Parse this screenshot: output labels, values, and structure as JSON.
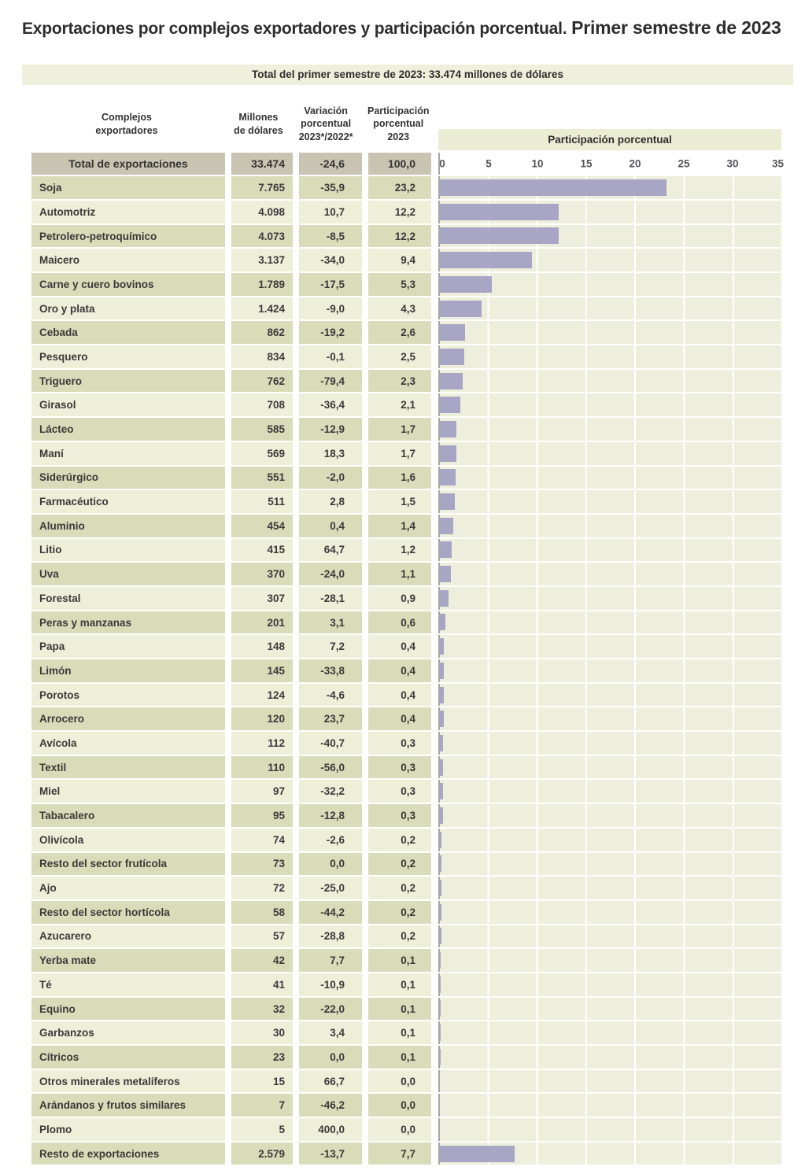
{
  "title": {
    "part1": "Exportaciones por complejos exportadores y participación porcentual.",
    "part2": "Primer semestre de 2023"
  },
  "subtitle": "Total del primer semestre de 2023: 33.474 millones de dólares",
  "table": {
    "headers": {
      "col1": "Complejos\nexportadores",
      "col2": "Millones\nde dólares",
      "col3": "Variación\nporcentual\n2023*/2022*",
      "col4": "Participación\nporcentual\n2023"
    },
    "total_row": {
      "label": "Total de exportaciones",
      "millones": "33.474",
      "variacion": "-24,6",
      "participacion": "100,0"
    },
    "rows": [
      {
        "label": "Soja",
        "millones": "7.765",
        "variacion": "-35,9",
        "participacion": "23,2"
      },
      {
        "label": "Automotriz",
        "millones": "4.098",
        "variacion": "10,7",
        "participacion": "12,2"
      },
      {
        "label": "Petrolero-petroquímico",
        "millones": "4.073",
        "variacion": "-8,5",
        "participacion": "12,2"
      },
      {
        "label": "Maicero",
        "millones": "3.137",
        "variacion": "-34,0",
        "participacion": "9,4"
      },
      {
        "label": "Carne y cuero bovinos",
        "millones": "1.789",
        "variacion": "-17,5",
        "participacion": "5,3"
      },
      {
        "label": "Oro y plata",
        "millones": "1.424",
        "variacion": "-9,0",
        "participacion": "4,3"
      },
      {
        "label": "Cebada",
        "millones": "862",
        "variacion": "-19,2",
        "participacion": "2,6"
      },
      {
        "label": "Pesquero",
        "millones": "834",
        "variacion": "-0,1",
        "participacion": "2,5"
      },
      {
        "label": "Triguero",
        "millones": "762",
        "variacion": "-79,4",
        "participacion": "2,3"
      },
      {
        "label": "Girasol",
        "millones": "708",
        "variacion": "-36,4",
        "participacion": "2,1"
      },
      {
        "label": "Lácteo",
        "millones": "585",
        "variacion": "-12,9",
        "participacion": "1,7"
      },
      {
        "label": "Maní",
        "millones": "569",
        "variacion": "18,3",
        "participacion": "1,7"
      },
      {
        "label": "Siderúrgico",
        "millones": "551",
        "variacion": "-2,0",
        "participacion": "1,6"
      },
      {
        "label": "Farmacéutico",
        "millones": "511",
        "variacion": "2,8",
        "participacion": "1,5"
      },
      {
        "label": "Aluminio",
        "millones": "454",
        "variacion": "0,4",
        "participacion": "1,4"
      },
      {
        "label": "Litio",
        "millones": "415",
        "variacion": "64,7",
        "participacion": "1,2"
      },
      {
        "label": "Uva",
        "millones": "370",
        "variacion": "-24,0",
        "participacion": "1,1"
      },
      {
        "label": "Forestal",
        "millones": "307",
        "variacion": "-28,1",
        "participacion": "0,9"
      },
      {
        "label": "Peras y manzanas",
        "millones": "201",
        "variacion": "3,1",
        "participacion": "0,6"
      },
      {
        "label": "Papa",
        "millones": "148",
        "variacion": "7,2",
        "participacion": "0,4"
      },
      {
        "label": "Limón",
        "millones": "145",
        "variacion": "-33,8",
        "participacion": "0,4"
      },
      {
        "label": "Porotos",
        "millones": "124",
        "variacion": "-4,6",
        "participacion": "0,4"
      },
      {
        "label": "Arrocero",
        "millones": "120",
        "variacion": "23,7",
        "participacion": "0,4"
      },
      {
        "label": "Avícola",
        "millones": "112",
        "variacion": "-40,7",
        "participacion": "0,3"
      },
      {
        "label": "Textil",
        "millones": "110",
        "variacion": "-56,0",
        "participacion": "0,3"
      },
      {
        "label": "Miel",
        "millones": "97",
        "variacion": "-32,2",
        "participacion": "0,3"
      },
      {
        "label": "Tabacalero",
        "millones": "95",
        "variacion": "-12,8",
        "participacion": "0,3"
      },
      {
        "label": "Olivícola",
        "millones": "74",
        "variacion": "-2,6",
        "participacion": "0,2"
      },
      {
        "label": "Resto del sector frutícola",
        "millones": "73",
        "variacion": "0,0",
        "participacion": "0,2"
      },
      {
        "label": "Ajo",
        "millones": "72",
        "variacion": "-25,0",
        "participacion": "0,2"
      },
      {
        "label": "Resto del sector hortícola",
        "millones": "58",
        "variacion": "-44,2",
        "participacion": "0,2"
      },
      {
        "label": "Azucarero",
        "millones": "57",
        "variacion": "-28,8",
        "participacion": "0,2"
      },
      {
        "label": "Yerba mate",
        "millones": "42",
        "variacion": "7,7",
        "participacion": "0,1"
      },
      {
        "label": "Té",
        "millones": "41",
        "variacion": "-10,9",
        "participacion": "0,1"
      },
      {
        "label": "Equino",
        "millones": "32",
        "variacion": "-22,0",
        "participacion": "0,1"
      },
      {
        "label": "Garbanzos",
        "millones": "30",
        "variacion": "3,4",
        "participacion": "0,1"
      },
      {
        "label": "Cítricos",
        "millones": "23",
        "variacion": "0,0",
        "participacion": "0,1"
      },
      {
        "label": "Otros minerales metalíferos",
        "millones": "15",
        "variacion": "66,7",
        "participacion": "0,0"
      },
      {
        "label": "Arándanos y frutos similares",
        "millones": "7",
        "variacion": "-46,2",
        "participacion": "0,0"
      },
      {
        "label": "Plomo",
        "millones": "5",
        "variacion": "400,0",
        "participacion": "0,0"
      },
      {
        "label": "Resto de exportaciones",
        "millones": "2.579",
        "variacion": "-13,7",
        "participacion": "7,7"
      }
    ]
  },
  "chart_data": {
    "type": "bar",
    "orientation": "horizontal",
    "title": "Participación porcentual",
    "xlabel": "Participación porcentual",
    "xlim": [
      0,
      35
    ],
    "xticks": [
      0,
      5,
      10,
      15,
      20,
      25,
      30,
      35
    ],
    "grid": true,
    "bar_color": "#a8a6c5",
    "categories": [
      "Soja",
      "Automotriz",
      "Petrolero-petroquímico",
      "Maicero",
      "Carne y cuero bovinos",
      "Oro y plata",
      "Cebada",
      "Pesquero",
      "Triguero",
      "Girasol",
      "Lácteo",
      "Maní",
      "Siderúrgico",
      "Farmacéutico",
      "Aluminio",
      "Litio",
      "Uva",
      "Forestal",
      "Peras y manzanas",
      "Papa",
      "Limón",
      "Porotos",
      "Arrocero",
      "Avícola",
      "Textil",
      "Miel",
      "Tabacalero",
      "Olivícola",
      "Resto del sector frutícola",
      "Ajo",
      "Resto del sector hortícola",
      "Azucarero",
      "Yerba mate",
      "Té",
      "Equino",
      "Garbanzos",
      "Cítricos",
      "Otros minerales metalíferos",
      "Arándanos y frutos similares",
      "Plomo",
      "Resto de exportaciones"
    ],
    "values": [
      23.2,
      12.2,
      12.2,
      9.4,
      5.3,
      4.3,
      2.6,
      2.5,
      2.3,
      2.1,
      1.7,
      1.7,
      1.6,
      1.5,
      1.4,
      1.2,
      1.1,
      0.9,
      0.6,
      0.4,
      0.4,
      0.4,
      0.4,
      0.3,
      0.3,
      0.3,
      0.3,
      0.2,
      0.2,
      0.2,
      0.2,
      0.2,
      0.1,
      0.1,
      0.1,
      0.1,
      0.1,
      0.0,
      0.0,
      0.0,
      7.7
    ],
    "total": {
      "label": "Total de exportaciones",
      "value": 100.0
    }
  },
  "colors": {
    "row_dark": "#d8dcb8",
    "row_light": "#edefd9",
    "total_row": "#c9c3b1",
    "band": "#ebecd4",
    "subtitle_band": "#eef0dc",
    "bar": "#a8a6c5",
    "chart_bg": "#edefdc"
  }
}
